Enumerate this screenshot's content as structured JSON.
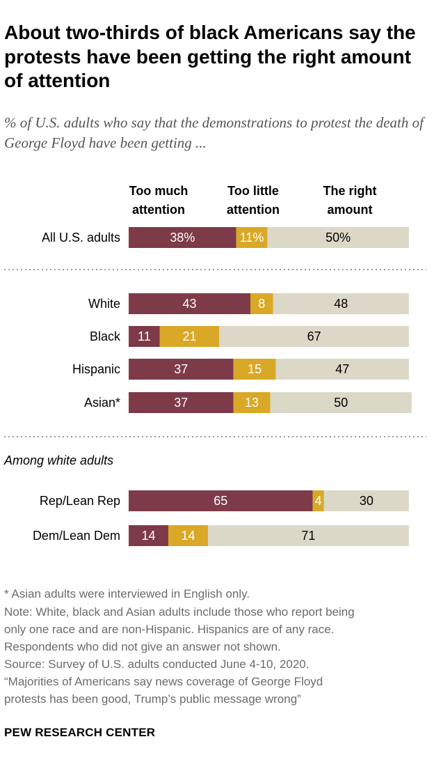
{
  "title": "About two-thirds of black Americans say the protests have been getting the right amount of attention",
  "subtitle": "% of U.S. adults who say that the demonstrations to protest the death of George Floyd have been getting ...",
  "columns": {
    "too_much": "Too much attention",
    "too_little": "Too little attention",
    "right_amount": "The right amount"
  },
  "section_label": "Among white adults",
  "colors": {
    "too_much": "#7d3a48",
    "too_little": "#d9a827",
    "right_amount": "#dcd8c8",
    "divider": "#999999"
  },
  "chart_data": {
    "type": "bar",
    "orientation": "horizontal",
    "stacked": true,
    "title": "About two-thirds of black Americans say the protests have been getting the right amount of attention",
    "subtitle": "% of U.S. adults who say that the demonstrations to protest the death of George Floyd have been getting ...",
    "categories": [
      "All U.S. adults",
      "White",
      "Black",
      "Hispanic",
      "Asian*",
      "Rep/Lean Rep",
      "Dem/Lean Dem"
    ],
    "groups": [
      "overall",
      "race",
      "race",
      "race",
      "race",
      "white_party",
      "white_party"
    ],
    "series": [
      {
        "name": "Too much attention",
        "values": [
          38,
          43,
          11,
          37,
          37,
          65,
          14
        ]
      },
      {
        "name": "Too little attention",
        "values": [
          11,
          8,
          21,
          15,
          13,
          4,
          14
        ]
      },
      {
        "name": "The right amount",
        "values": [
          50,
          48,
          67,
          47,
          50,
          30,
          71
        ]
      }
    ],
    "value_labels": [
      [
        "38%",
        "11%",
        "50%"
      ],
      [
        "43",
        "8",
        "48"
      ],
      [
        "11",
        "21",
        "67"
      ],
      [
        "37",
        "15",
        "47"
      ],
      [
        "37",
        "13",
        "50"
      ],
      [
        "65",
        "4",
        "30"
      ],
      [
        "14",
        "14",
        "71"
      ]
    ],
    "xlim": [
      0,
      100
    ]
  },
  "notes": {
    "asterisk": "* Asian adults were interviewed in English only.",
    "note_lines": [
      "Note: White, black and Asian adults include those who report being",
      "only one race and are non-Hispanic. Hispanics are of any race.",
      "Respondents who did not give an answer not shown."
    ],
    "source": "Source: Survey of U.S. adults conducted June 4-10, 2020.",
    "report_lines": [
      "“Majorities of Americans say news coverage of George Floyd",
      "protests has been good, Trump’s public message wrong”"
    ]
  },
  "credit": "PEW RESEARCH CENTER"
}
